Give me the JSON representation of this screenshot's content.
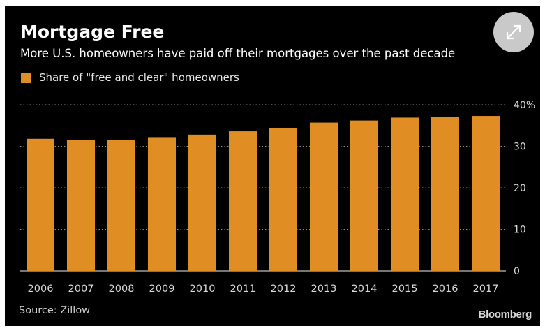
{
  "header": {
    "title": "Mortgage Free",
    "subtitle": "More U.S. homeowners have paid off their mortgages over the past decade",
    "expand_icon": "expand-arrows-icon"
  },
  "legend": {
    "label": "Share of \"free and clear\" homeowners"
  },
  "footer": {
    "source": "Source: Zillow",
    "brand": "Bloomberg"
  },
  "colors": {
    "background": "#000000",
    "bar": "#E08E24",
    "text": "#ffffff",
    "axis_text": "#d8d8d8",
    "grid": "#8c8c8c"
  },
  "chart_data": {
    "type": "bar",
    "title": "Mortgage Free",
    "subtitle": "More U.S. homeowners have paid off their mortgages over the past decade",
    "categories": [
      "2006",
      "2007",
      "2008",
      "2009",
      "2010",
      "2011",
      "2012",
      "2013",
      "2014",
      "2015",
      "2016",
      "2017"
    ],
    "series": [
      {
        "name": "Share of \"free and clear\" homeowners",
        "values": [
          31.8,
          31.5,
          31.5,
          32.2,
          32.8,
          33.6,
          34.3,
          35.7,
          36.2,
          36.9,
          37.0,
          37.3
        ]
      }
    ],
    "yticks": [
      0,
      10,
      20,
      30,
      40
    ],
    "ytick_labels": [
      "0",
      "10",
      "20",
      "30",
      "40%"
    ],
    "ylim": [
      0,
      40
    ],
    "xlabel": "",
    "ylabel": "",
    "grid": true,
    "y_axis_side": "right",
    "legend_position": "top-left"
  }
}
